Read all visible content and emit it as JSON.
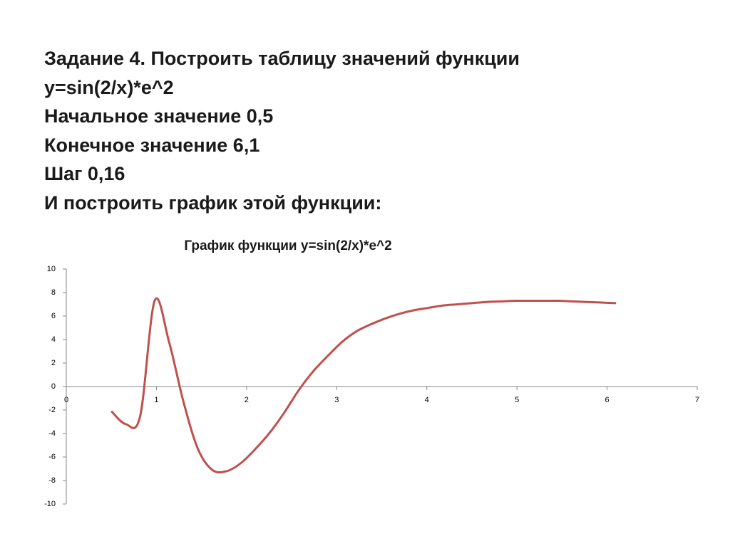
{
  "heading": [
    "Задание 4. Построить таблицу значений функции",
    "y=sin(2/x)*e^2",
    "Начальное значение 0,5",
    "Конечное значение 6,1",
    "Шаг 0,16",
    "И построить график этой функции:"
  ],
  "chart_data": {
    "type": "line",
    "title": "График функции y=sin(2/x)*e^2",
    "x": [
      0.5,
      0.66,
      0.82,
      0.98,
      1.14,
      1.3,
      1.46,
      1.62,
      1.78,
      1.94,
      2.1,
      2.26,
      2.42,
      2.58,
      2.74,
      2.9,
      3.06,
      3.22,
      3.38,
      3.54,
      3.7,
      3.86,
      4.02,
      4.18,
      4.34,
      4.5,
      4.66,
      4.82,
      4.98,
      5.14,
      5.3,
      5.46,
      5.62,
      5.78,
      5.94,
      6.1
    ],
    "series": [
      {
        "color": "#c0504d",
        "values": [
          -2.1,
          -3.2,
          -2.5,
          7.3,
          3.8,
          -1.3,
          -5.3,
          -7.1,
          -7.2,
          -6.5,
          -5.3,
          -3.9,
          -2.2,
          -0.3,
          1.3,
          2.6,
          3.8,
          4.7,
          5.3,
          5.8,
          6.2,
          6.5,
          6.7,
          6.9,
          7.0,
          7.1,
          7.2,
          7.25,
          7.3,
          7.3,
          7.3,
          7.3,
          7.25,
          7.2,
          7.15,
          7.1
        ]
      }
    ],
    "xlim": [
      0,
      7
    ],
    "xticks": [
      0,
      1,
      2,
      3,
      4,
      5,
      6,
      7
    ],
    "ylim": [
      -10,
      10
    ],
    "yticks": [
      -10,
      -8,
      -6,
      -4,
      -2,
      0,
      2,
      4,
      6,
      8,
      10
    ],
    "grid": false
  }
}
